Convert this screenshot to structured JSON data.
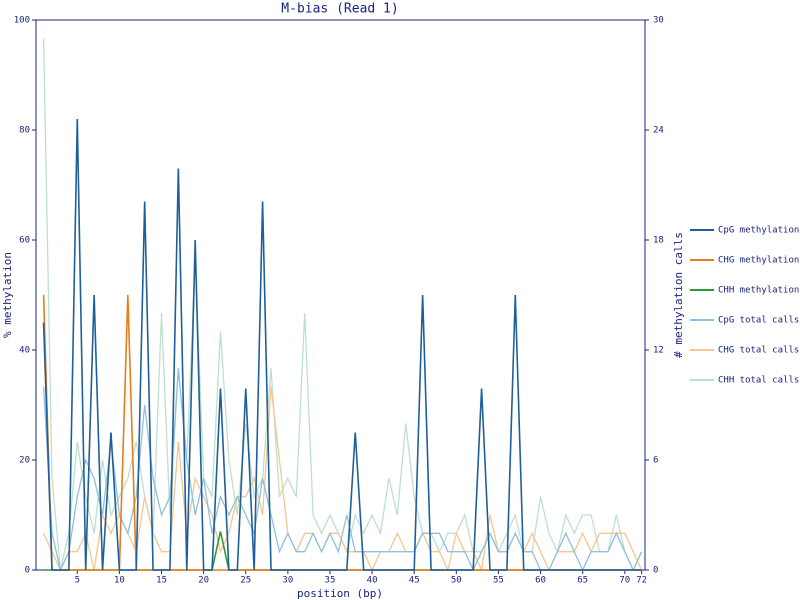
{
  "chart_data": {
    "type": "line",
    "title": "M-bias (Read 1)",
    "x_label": "position (bp)",
    "y_label": "% methylation",
    "y2_label": "# methylation calls",
    "legend": "right",
    "x": [
      1,
      2,
      3,
      4,
      5,
      6,
      7,
      8,
      9,
      10,
      11,
      12,
      13,
      14,
      15,
      16,
      17,
      18,
      19,
      20,
      21,
      22,
      23,
      24,
      25,
      26,
      27,
      28,
      29,
      30,
      31,
      32,
      33,
      34,
      35,
      36,
      37,
      38,
      39,
      40,
      41,
      42,
      43,
      44,
      45,
      46,
      47,
      48,
      49,
      50,
      51,
      52,
      53,
      54,
      55,
      56,
      57,
      58,
      59,
      60,
      61,
      62,
      63,
      64,
      65,
      66,
      67,
      68,
      69,
      70,
      71,
      72
    ],
    "xlim": [
      0.1,
      72.4
    ],
    "xticks": [
      5,
      10,
      15,
      20,
      25,
      30,
      35,
      40,
      45,
      50,
      55,
      60,
      65,
      70,
      72
    ],
    "ylim": [
      0,
      100
    ],
    "yticks": [
      0,
      20,
      40,
      60,
      80,
      100
    ],
    "y2lim": [
      0,
      30
    ],
    "y2ticks": [
      0,
      6,
      12,
      18,
      24,
      30
    ],
    "series": [
      {
        "name": "CpG methylation",
        "color": "#1f5f99",
        "values": [
          45,
          0,
          0,
          0,
          82,
          0,
          50,
          0,
          25,
          0,
          0,
          0,
          67,
          0,
          0,
          0,
          73,
          0,
          60,
          0,
          0,
          33,
          0,
          0,
          33,
          0,
          67,
          0,
          0,
          0,
          0,
          0,
          0,
          0,
          0,
          0,
          0,
          25,
          0,
          0,
          0,
          0,
          0,
          0,
          0,
          50,
          0,
          0,
          0,
          0,
          0,
          0,
          33,
          0,
          0,
          0,
          50,
          0,
          0,
          0,
          0,
          0,
          0,
          0,
          0,
          0,
          0,
          0,
          0,
          0,
          0,
          0
        ]
      },
      {
        "name": "CHG methylation",
        "color": "#e67e1a",
        "values": [
          50,
          0,
          0,
          0,
          0,
          0,
          0,
          0,
          0,
          0,
          50,
          0,
          0,
          0,
          0,
          0,
          0,
          0,
          0,
          0,
          0,
          0,
          0,
          0,
          0,
          0,
          0,
          0,
          0,
          0,
          0,
          0,
          0,
          0,
          0,
          0,
          0,
          0,
          0,
          0,
          0,
          0,
          0,
          0,
          0,
          0,
          0,
          0,
          0,
          0,
          0,
          0,
          0,
          0,
          0,
          0,
          0,
          0,
          0,
          0,
          0,
          0,
          0,
          0,
          0,
          0,
          0,
          0,
          0,
          0,
          0,
          0
        ]
      },
      {
        "name": "CHH methylation",
        "color": "#2e9a36",
        "values": [
          0,
          0,
          0,
          0,
          0,
          0,
          0,
          0,
          0,
          0,
          0,
          0,
          0,
          0,
          0,
          0,
          0,
          0,
          0,
          0,
          0,
          7,
          0,
          0,
          0,
          0,
          0,
          0,
          0,
          0,
          0,
          0,
          0,
          0,
          0,
          0,
          0,
          0,
          0,
          0,
          0,
          0,
          0,
          0,
          0,
          0,
          0,
          0,
          0,
          0,
          0,
          0,
          0,
          0,
          0,
          0,
          0,
          0,
          0,
          0,
          0,
          0,
          0,
          0,
          0,
          0,
          0,
          0,
          0,
          0,
          0,
          0
        ]
      },
      {
        "name": "CpG total calls",
        "color": "#8fc0de",
        "axis": "y2",
        "values": [
          10,
          2,
          0,
          1,
          4,
          6,
          5,
          3,
          7,
          3,
          2,
          4,
          9,
          5,
          3,
          4,
          11,
          6,
          3,
          5,
          2,
          4,
          3,
          4,
          3,
          2,
          5,
          3,
          1,
          2,
          1,
          1,
          2,
          1,
          2,
          1,
          3,
          1,
          1,
          1,
          1,
          1,
          1,
          1,
          1,
          2,
          2,
          2,
          1,
          1,
          1,
          0,
          1,
          2,
          1,
          1,
          2,
          1,
          1,
          0,
          0,
          1,
          2,
          1,
          0,
          1,
          1,
          1,
          2,
          1,
          0,
          1
        ]
      },
      {
        "name": "CHG total calls",
        "color": "#f6c690",
        "axis": "y2",
        "values": [
          2,
          1,
          0,
          1,
          1,
          2,
          0,
          3,
          2,
          3,
          2,
          1,
          4,
          2,
          1,
          1,
          7,
          2,
          5,
          4,
          3,
          1,
          2,
          4,
          4,
          5,
          3,
          10,
          6,
          2,
          1,
          2,
          2,
          1,
          2,
          2,
          1,
          1,
          1,
          0,
          1,
          1,
          2,
          1,
          1,
          2,
          1,
          1,
          0,
          2,
          1,
          1,
          0,
          3,
          1,
          1,
          2,
          1,
          2,
          1,
          0,
          1,
          1,
          1,
          2,
          1,
          2,
          2,
          2,
          2,
          1,
          0
        ]
      },
      {
        "name": "CHH total calls",
        "color": "#bde0cc",
        "axis": "y2",
        "values": [
          29,
          5,
          0,
          2,
          7,
          4,
          2,
          6,
          3,
          4,
          5,
          7,
          4,
          2,
          14,
          3,
          11,
          6,
          17,
          5,
          4,
          13,
          6,
          3,
          8,
          4,
          5,
          11,
          4,
          5,
          4,
          14,
          3,
          2,
          3,
          2,
          1,
          3,
          2,
          3,
          2,
          5,
          3,
          8,
          4,
          2,
          2,
          1,
          2,
          2,
          3,
          1,
          1,
          2,
          1,
          2,
          3,
          1,
          1,
          4,
          2,
          1,
          3,
          2,
          3,
          3,
          1,
          1,
          3,
          1,
          0,
          1
        ]
      }
    ]
  }
}
